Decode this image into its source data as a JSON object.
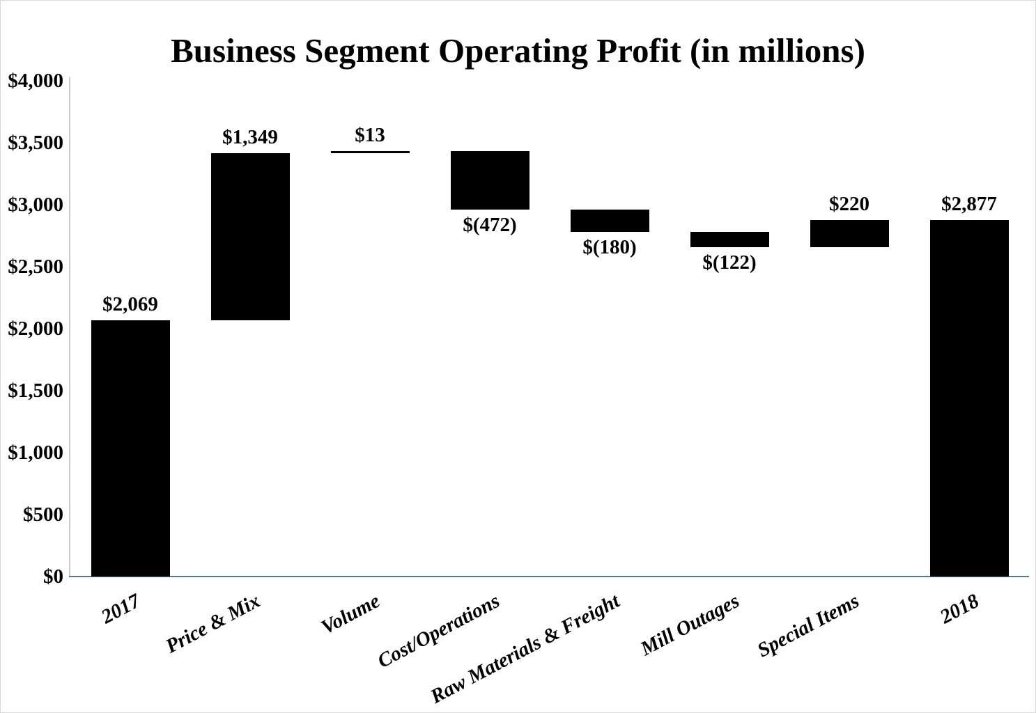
{
  "chart_data": {
    "type": "waterfall",
    "title": "Business Segment Operating Profit (in millions)",
    "categories": [
      "2017",
      "Price & Mix",
      "Volume",
      "Cost/Operations",
      "Raw Materials & Freight",
      "Mill Outages",
      "Special Items",
      "2018"
    ],
    "bars": [
      {
        "category": "2017",
        "kind": "total",
        "value": 2069,
        "label": "$2,069"
      },
      {
        "category": "Price & Mix",
        "kind": "delta",
        "value": 1349,
        "label": "$1,349"
      },
      {
        "category": "Volume",
        "kind": "delta",
        "value": 13,
        "label": "$13"
      },
      {
        "category": "Cost/Operations",
        "kind": "delta",
        "value": -472,
        "label": "$(472)"
      },
      {
        "category": "Raw Materials & Freight",
        "kind": "delta",
        "value": -180,
        "label": "$(180)"
      },
      {
        "category": "Mill Outages",
        "kind": "delta",
        "value": -122,
        "label": "$(122)"
      },
      {
        "category": "Special Items",
        "kind": "delta",
        "value": 220,
        "label": "$220"
      },
      {
        "category": "2018",
        "kind": "total",
        "value": 2877,
        "label": "$2,877"
      }
    ],
    "y_axis": {
      "min": 0,
      "max": 4000,
      "step": 500,
      "tick_labels": [
        "$0",
        "$500",
        "$1,000",
        "$1,500",
        "$2,000",
        "$2,500",
        "$3,000",
        "$3,500",
        "$4,000"
      ]
    },
    "xlabel": "",
    "ylabel": "",
    "grid": false,
    "legend": "none",
    "colors": {
      "bar": "#000000",
      "x_axis_line": "#4d7a94",
      "y_axis_line": "#c9c9c9",
      "frame_border": "#d9d9d9",
      "text": "#000000",
      "background": "#ffffff"
    }
  }
}
